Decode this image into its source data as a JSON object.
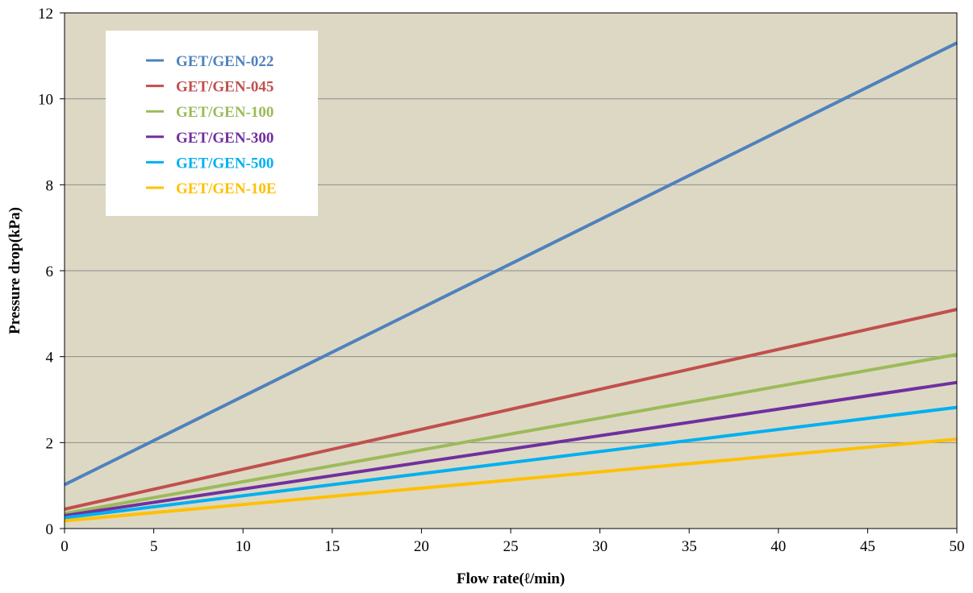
{
  "chart_data": {
    "type": "line",
    "title": "",
    "xlabel": "Flow rate(ℓ/min)",
    "ylabel": "Pressure drop(kPa)",
    "xlim": [
      0,
      50
    ],
    "ylim": [
      0,
      12
    ],
    "x_ticks": [
      "0",
      "5",
      "10",
      "15",
      "20",
      "25",
      "30",
      "35",
      "40",
      "45",
      "50"
    ],
    "y_ticks": [
      "0",
      "2",
      "4",
      "6",
      "8",
      "10",
      "12"
    ],
    "grid": "horizontal",
    "legend_position": "top-left",
    "plot_background": "#ddd8c4",
    "series": [
      {
        "name": "GET/GEN-022",
        "color": "#4f81bd",
        "x": [
          0,
          50
        ],
        "y": [
          1.02,
          11.3
        ]
      },
      {
        "name": "GET/GEN-045",
        "color": "#c0504d",
        "x": [
          0,
          50
        ],
        "y": [
          0.45,
          5.1
        ]
      },
      {
        "name": "GET/GEN-100",
        "color": "#9bbb59",
        "x": [
          0,
          50
        ],
        "y": [
          0.35,
          4.05
        ]
      },
      {
        "name": "GET/GEN-300",
        "color": "#7030a0",
        "x": [
          0,
          50
        ],
        "y": [
          0.3,
          3.4
        ]
      },
      {
        "name": "GET/GEN-500",
        "color": "#00b0f0",
        "x": [
          0,
          50
        ],
        "y": [
          0.25,
          2.82
        ]
      },
      {
        "name": "GET/GEN-10E",
        "color": "#ffc000",
        "x": [
          0,
          50
        ],
        "y": [
          0.18,
          2.08
        ]
      }
    ]
  }
}
